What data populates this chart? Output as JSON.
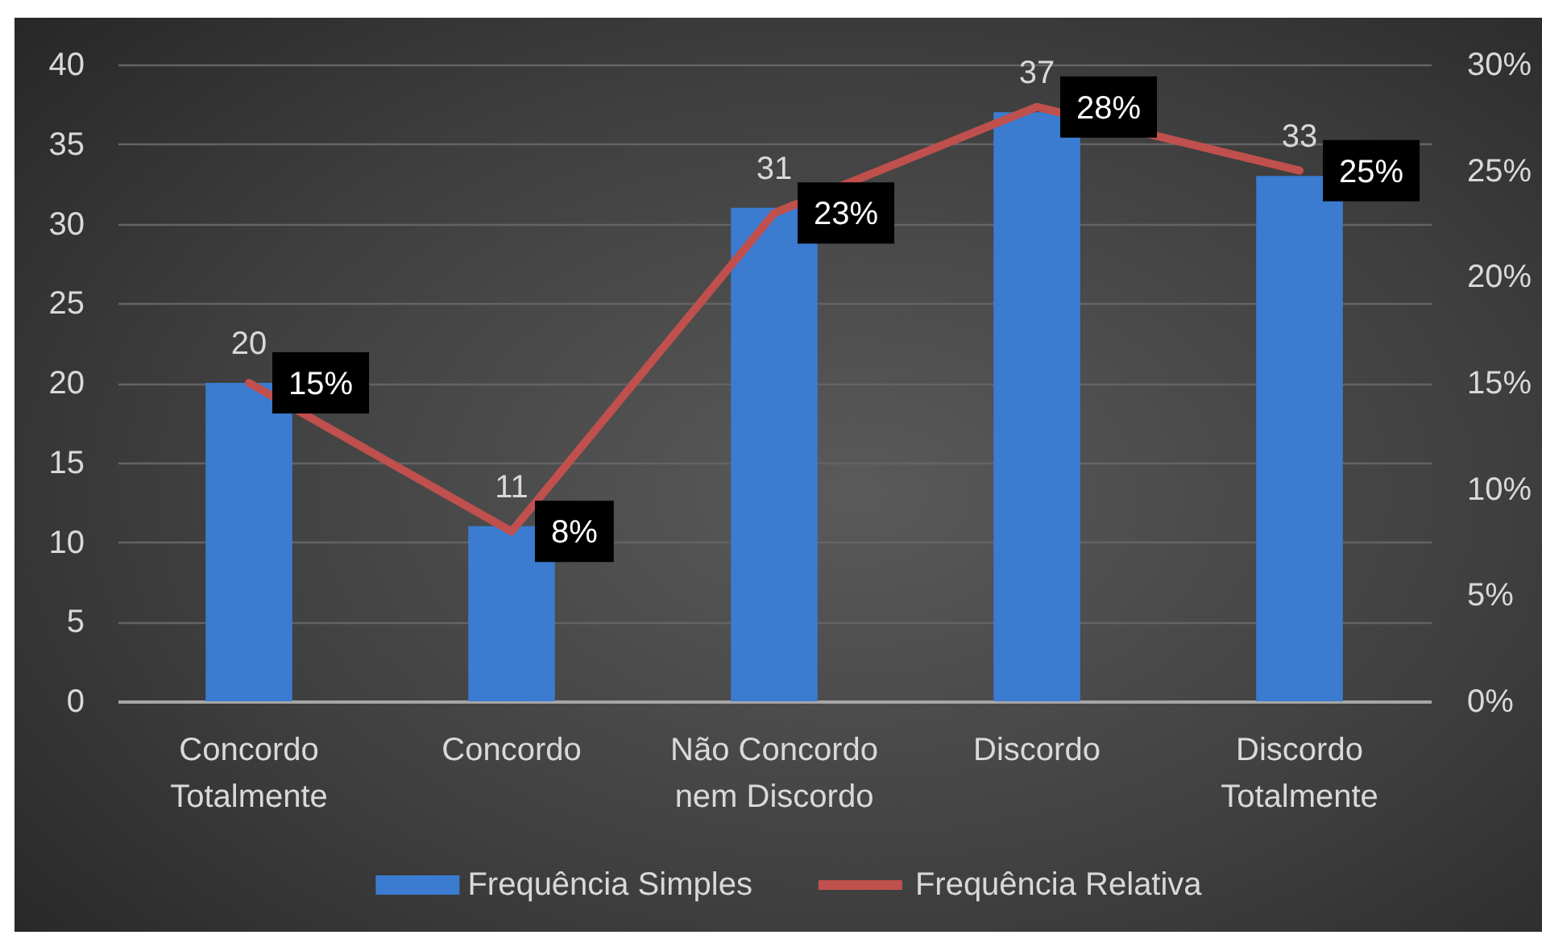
{
  "chart_data": {
    "type": "bar",
    "categories": [
      "Concordo Totalmente",
      "Concordo",
      "Não Concordo nem Discordo",
      "Discordo",
      "Discordo Totalmente"
    ],
    "series": [
      {
        "name": "Frequência Simples",
        "color": "#3b7bd0",
        "values": [
          20,
          11,
          31,
          37,
          33
        ],
        "value_labels": [
          "20",
          "11",
          "31",
          "37",
          "33"
        ]
      },
      {
        "name": "Frequência Relativa",
        "type": "line",
        "axis": "y2",
        "color": "#c0504d",
        "values": [
          15,
          8,
          23,
          28,
          25
        ],
        "value_labels": [
          "15%",
          "8%",
          "23%",
          "28%",
          "25%"
        ]
      }
    ],
    "ylim": [
      0,
      40
    ],
    "yticks": [
      0,
      5,
      10,
      15,
      20,
      25,
      30,
      35,
      40
    ],
    "y2lim": [
      0,
      30
    ],
    "y2ticks": [
      {
        "value": 0,
        "label": "0%"
      },
      {
        "value": 5,
        "label": "5%"
      },
      {
        "value": 10,
        "label": "10%"
      },
      {
        "value": 15,
        "label": "15%"
      },
      {
        "value": 20,
        "label": "20%"
      },
      {
        "value": 25,
        "label": "25%"
      },
      {
        "value": 30,
        "label": "30%"
      }
    ],
    "grid": "y",
    "legend": "bottom"
  }
}
